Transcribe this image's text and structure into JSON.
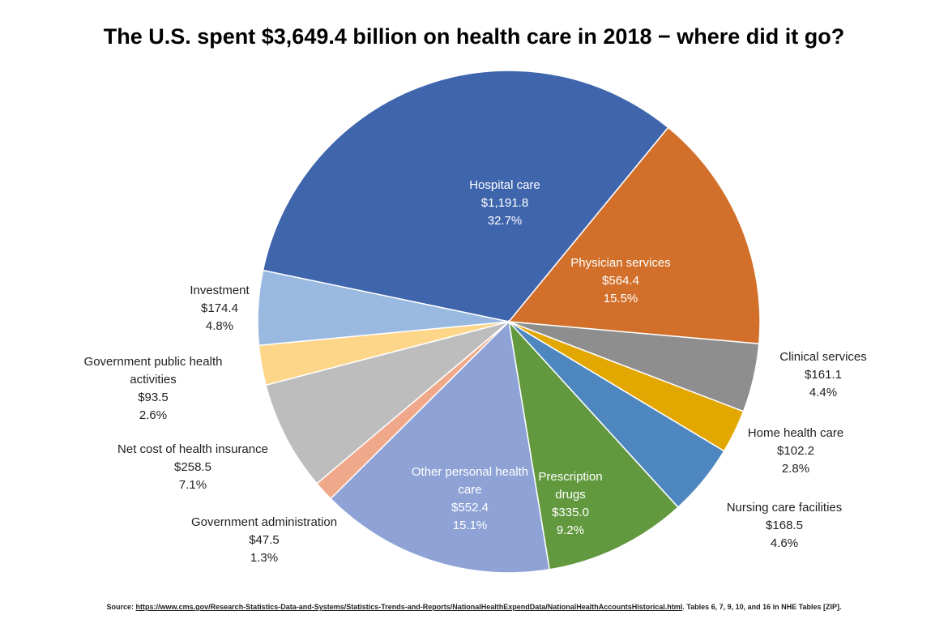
{
  "chart_data": {
    "type": "pie",
    "title": "The U.S. spent $3,649.4 billion on health care in 2018 − where did it go?",
    "slices": [
      {
        "name": "Hospital care",
        "value": 1191.8,
        "value_label": "$1,191.8",
        "percent": "32.7%",
        "color": "#3F65AD",
        "label_inside": true
      },
      {
        "name": "Physician services",
        "value": 564.4,
        "value_label": "$564.4",
        "percent": "15.5%",
        "color": "#D2702B",
        "label_inside": true
      },
      {
        "name": "Clinical services",
        "value": 161.1,
        "value_label": "$161.1",
        "percent": "4.4%",
        "color": "#8E8E8E",
        "label_inside": false
      },
      {
        "name": "Home health care",
        "value": 102.2,
        "value_label": "$102.2",
        "percent": "2.8%",
        "color": "#E2A700",
        "label_inside": false
      },
      {
        "name": "Nursing care facilities",
        "value": 168.5,
        "value_label": "$168.5",
        "percent": "4.6%",
        "color": "#4E87C0",
        "label_inside": false
      },
      {
        "name": "Prescription drugs",
        "value": 335.0,
        "value_label": "$335.0",
        "percent": "9.2%",
        "color": "#62993F",
        "label_inside": true
      },
      {
        "name": "Other personal health care",
        "value": 552.4,
        "value_label": "$552.4",
        "percent": "15.1%",
        "color": "#8EA2D6",
        "label_inside": true
      },
      {
        "name": "Government administration",
        "value": 47.5,
        "value_label": "$47.5",
        "percent": "1.3%",
        "color": "#F0A88A",
        "label_inside": false
      },
      {
        "name": "Net cost of health insurance",
        "value": 258.5,
        "value_label": "$258.5",
        "percent": "7.1%",
        "color": "#BDBDBD",
        "label_inside": false
      },
      {
        "name": "Government public health activities",
        "value": 93.5,
        "value_label": "$93.5",
        "percent": "2.6%",
        "color": "#FDD68A",
        "label_inside": false
      },
      {
        "name": "Investment",
        "value": 174.4,
        "value_label": "$174.4",
        "percent": "4.8%",
        "color": "#9AB9E0",
        "label_inside": false
      }
    ]
  },
  "source": {
    "prefix": "Source: ",
    "link": "https://www.cms.gov/Research-Statistics-Data-and-Systems/Statistics-Trends-and-Reports/NationalHealthExpendData/NationalHealthAccountsHistorical.html",
    "suffix": ". Tables 6, 7, 9, 10, and 16 in NHE Tables [ZIP]."
  }
}
